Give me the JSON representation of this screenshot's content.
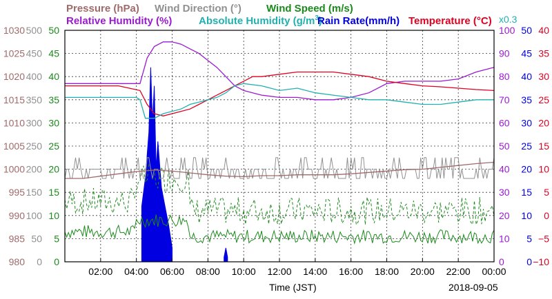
{
  "chart_data": {
    "type": "line",
    "date": "2018-09-05",
    "xlabel": "Time (JST)",
    "x_ticks": [
      "02:00",
      "04:00",
      "06:00",
      "08:00",
      "10:00",
      "12:00",
      "14:00",
      "16:00",
      "18:00",
      "20:00",
      "22:00",
      "00:00"
    ],
    "x_range_hours": [
      0,
      24
    ],
    "grid": true,
    "legend": [
      {
        "name": "Pressure (hPa)",
        "color": "#a06a6a"
      },
      {
        "name": "Wind Direction (°)",
        "color": "#909090"
      },
      {
        "name": "Wind Speed (m/s)",
        "color": "#1a8a1a"
      },
      {
        "name": "Relative Humidity (%)",
        "color": "#9a1ad0"
      },
      {
        "name": "Absolute Humidity (g/m",
        "sup": "3",
        "close": ")",
        "color": "#20b0b0"
      },
      {
        "name": "Rain Rate(mm/h)",
        "color": "#0000e0"
      },
      {
        "name": "Temperature (°C)",
        "color": "#e00020"
      }
    ],
    "rain_scale_note": "x0.3",
    "axes": {
      "pressure": {
        "ticks": [
          "1030",
          "1025",
          "1020",
          "1015",
          "1010",
          "1005",
          "1000",
          "995",
          "990",
          "985",
          "980"
        ],
        "range": [
          980,
          1030
        ],
        "color": "#a06a6a"
      },
      "wind_direction": {
        "ticks": [
          "500",
          "450",
          "400",
          "350",
          "300",
          "250",
          "200",
          "150",
          "100",
          "50",
          "0"
        ],
        "range": [
          0,
          500
        ],
        "color": "#909090"
      },
      "wind_speed": {
        "ticks": [
          "50",
          "45",
          "40",
          "35",
          "30",
          "25",
          "20",
          "15",
          "10",
          "5",
          "0"
        ],
        "range": [
          0,
          50
        ],
        "color": "#1a8a1a"
      },
      "relative_humidity": {
        "ticks": [
          "100",
          "90",
          "80",
          "70",
          "60",
          "50",
          "40",
          "30",
          "20",
          "10",
          "0"
        ],
        "range": [
          0,
          100
        ],
        "color": "#9a1ad0"
      },
      "rain_rate": {
        "ticks": [
          "50",
          "45",
          "40",
          "35",
          "30",
          "25",
          "20",
          "15",
          "10",
          "5",
          "0"
        ],
        "range": [
          0,
          50
        ],
        "color": "#0000e0"
      },
      "temperature": {
        "ticks": [
          "40",
          "35",
          "30",
          "25",
          "20",
          "15",
          "10",
          "5",
          "0",
          "−5",
          "−10"
        ],
        "range": [
          -10,
          40
        ],
        "color": "#e00020"
      }
    },
    "series": [
      {
        "name": "Relative Humidity",
        "axis": "relative_humidity",
        "x": [
          0,
          2,
          4.2,
          4.6,
          5,
          5.5,
          6,
          6.5,
          7,
          7.5,
          8,
          8.5,
          9,
          9.5,
          10,
          10.5,
          11,
          12,
          13,
          14,
          15,
          16,
          17,
          18,
          19,
          20,
          21,
          22,
          23,
          24
        ],
        "y": [
          77,
          77,
          77,
          88,
          93,
          95,
          95,
          94,
          92,
          90,
          87,
          84,
          80,
          76,
          74,
          73,
          72,
          71,
          71,
          70,
          70,
          71,
          73,
          77,
          78,
          78,
          78,
          79,
          82,
          84
        ]
      },
      {
        "name": "Temperature",
        "axis": "temperature",
        "x": [
          0,
          1,
          2,
          3,
          4.2,
          4.6,
          5,
          5.5,
          6,
          6.5,
          7,
          7.5,
          8,
          8.5,
          9,
          9.5,
          10,
          10.5,
          11,
          12,
          13,
          14,
          15,
          16,
          17,
          18,
          19,
          20,
          21,
          22,
          23,
          24
        ],
        "y": [
          28,
          28,
          28,
          28,
          27,
          24,
          22,
          21.5,
          22,
          22.5,
          23,
          24,
          25,
          26,
          27,
          28,
          29,
          30,
          30,
          30.5,
          31,
          31,
          31,
          30.5,
          30,
          29,
          28.5,
          28,
          27.8,
          27.5,
          27.2,
          27
        ]
      },
      {
        "name": "Absolute Humidity",
        "axis": "relative_humidity",
        "x": [
          0,
          2,
          4,
          4.2,
          4.5,
          5,
          5.5,
          6,
          6.5,
          7,
          7.5,
          8,
          8.5,
          9,
          9.5,
          10,
          11,
          12,
          13,
          14,
          15,
          16,
          17,
          18,
          19,
          20,
          21,
          22,
          23,
          24
        ],
        "y": [
          71,
          71,
          71,
          70,
          62,
          62,
          64,
          65,
          66,
          68,
          69,
          70,
          71,
          73,
          76,
          77,
          76,
          74,
          75,
          73,
          72,
          71,
          70,
          70,
          69,
          68,
          68,
          69,
          70,
          70
        ]
      },
      {
        "name": "Pressure",
        "axis": "pressure",
        "x": [
          0,
          1,
          2,
          3,
          4,
          5,
          6,
          7,
          8,
          9,
          10,
          11,
          12,
          13,
          14,
          15,
          16,
          17,
          18,
          19,
          20,
          21,
          22,
          23,
          24
        ],
        "y": [
          998,
          998,
          998.5,
          999,
          999.5,
          999.8,
          999.6,
          999.2,
          998.8,
          998.5,
          998.4,
          998.6,
          998.6,
          998.8,
          998.8,
          998.8,
          999,
          999.3,
          999.6,
          999.9,
          1000,
          1000.4,
          1000.8,
          1001.2,
          1001.5
        ]
      }
    ],
    "rain_rate": {
      "x": [
        4.3,
        4.5,
        4.7,
        4.8,
        4.9,
        5.0,
        5.1,
        5.2,
        5.4,
        5.6,
        5.8,
        6.0,
        8.9,
        9.0,
        9.1
      ],
      "y": [
        12,
        18,
        28,
        42,
        30,
        38,
        20,
        26,
        16,
        12,
        8,
        3,
        1,
        3,
        1
      ]
    }
  }
}
